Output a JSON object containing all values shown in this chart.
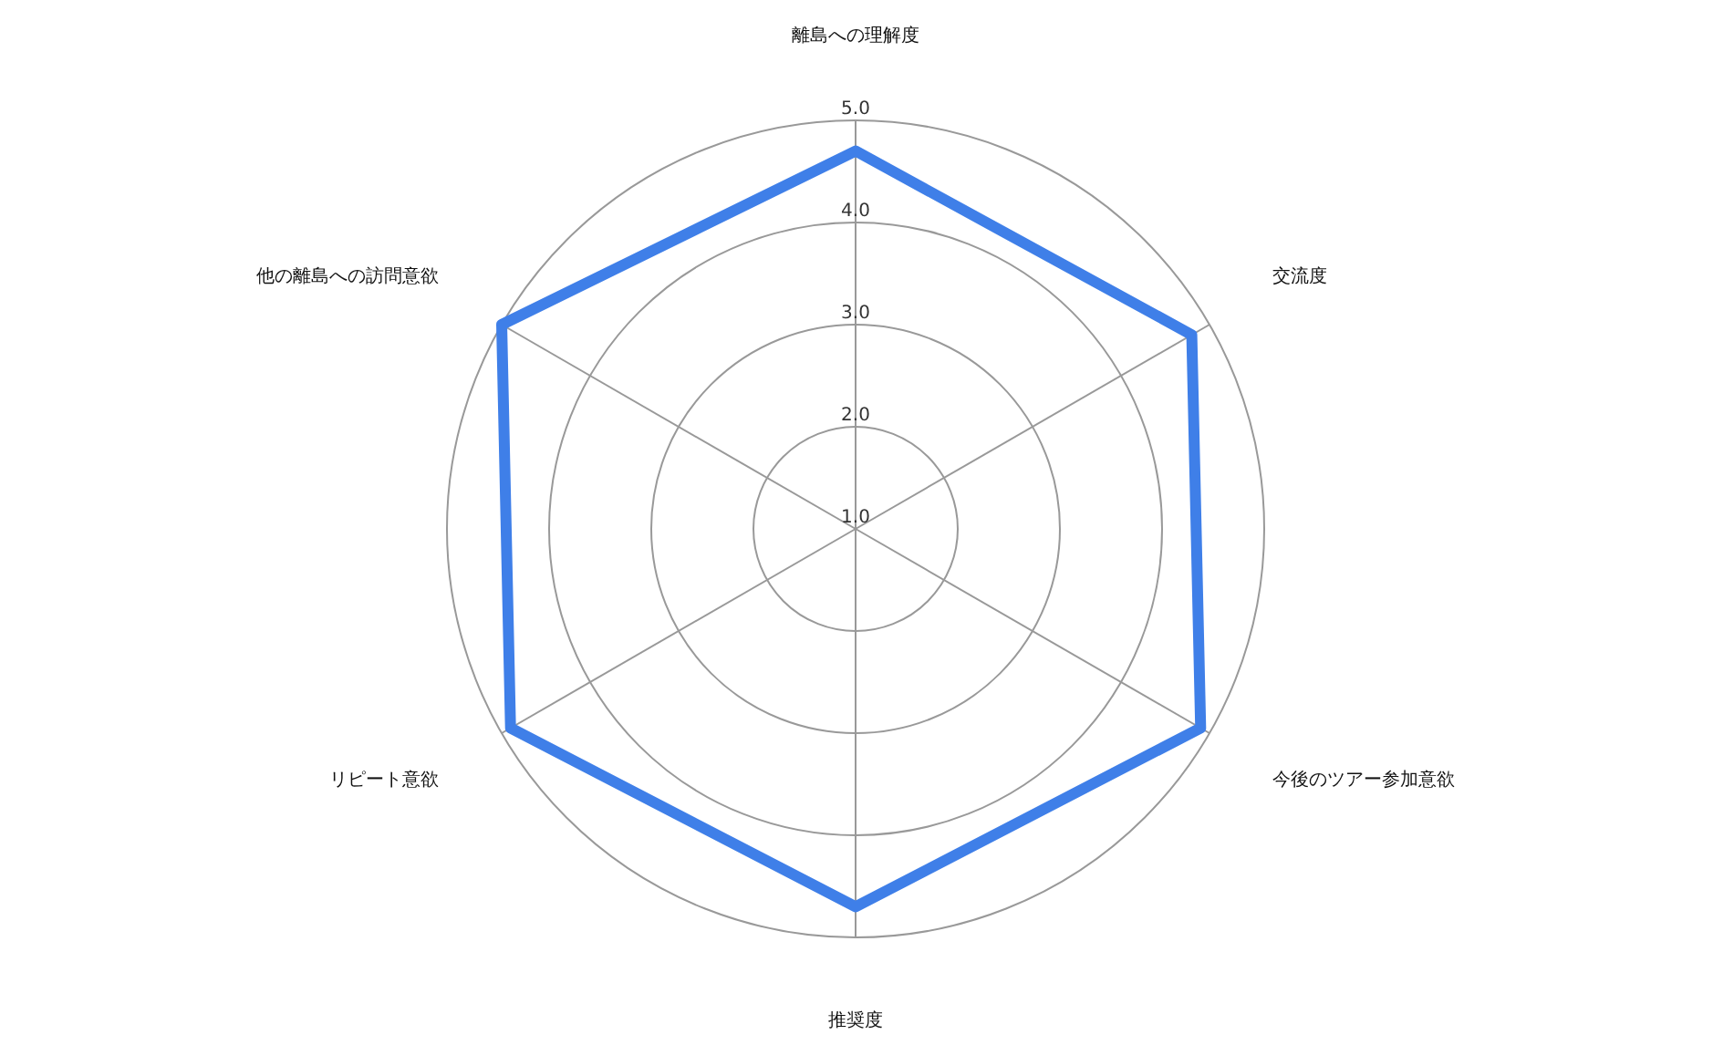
{
  "chart_data": {
    "type": "radar",
    "categories": [
      "離島への理解度",
      "交流度",
      "今後のツアー参加意欲",
      "推奨度",
      "リピート意欲",
      "他の離島への訪問意欲"
    ],
    "series": [
      {
        "color": "#3f7fe8",
        "values": [
          4.7,
          4.8,
          4.9,
          4.7,
          4.9,
          5.0
        ]
      }
    ],
    "ylim": [
      1,
      5
    ],
    "yticks": [
      {
        "value": 1,
        "label": "1.0"
      },
      {
        "value": 2,
        "label": "2.0"
      },
      {
        "value": 3,
        "label": "3.0"
      },
      {
        "value": 4,
        "label": "4.0"
      },
      {
        "value": 5,
        "label": "5.0"
      }
    ],
    "grid": true
  }
}
